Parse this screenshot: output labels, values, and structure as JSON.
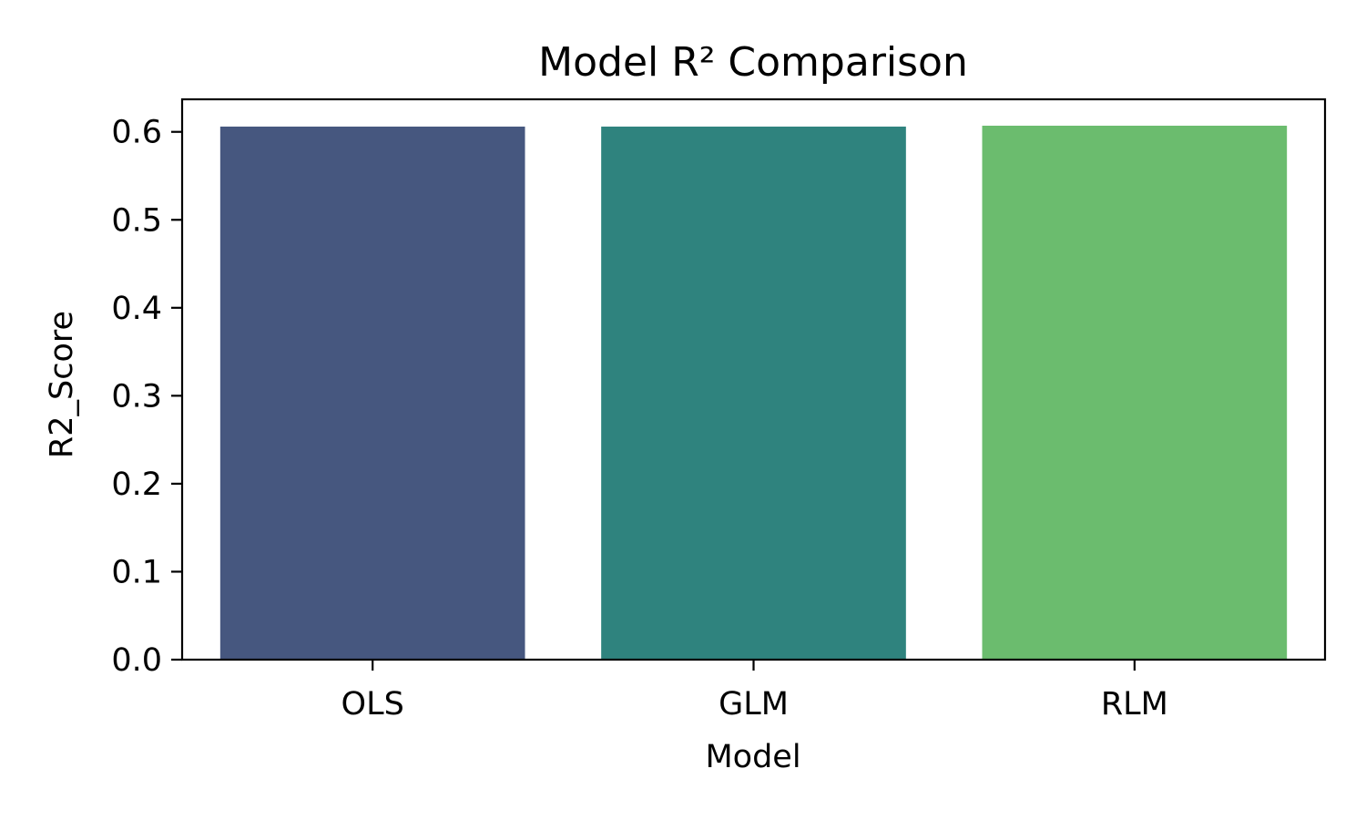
{
  "chart_data": {
    "type": "bar",
    "title": "Model R² Comparison",
    "xlabel": "Model",
    "ylabel": "R2_Score",
    "categories": [
      "OLS",
      "GLM",
      "RLM"
    ],
    "values": [
      0.606,
      0.606,
      0.607
    ],
    "colors": [
      "#46577f",
      "#2f837e",
      "#6bbc6e"
    ],
    "ylim": [
      0,
      0.637
    ],
    "yticks": [
      "0.0",
      "0.1",
      "0.2",
      "0.3",
      "0.4",
      "0.5",
      "0.6"
    ],
    "grid": false,
    "legend": false
  }
}
